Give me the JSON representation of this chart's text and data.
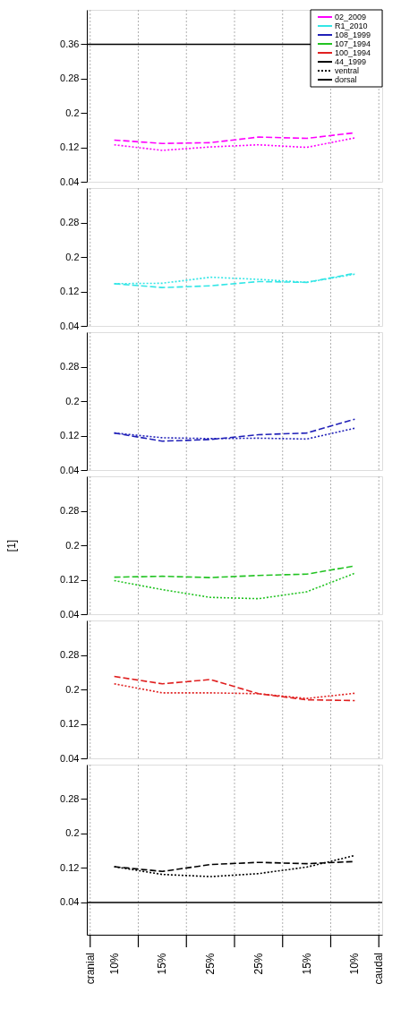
{
  "chart_data": [
    {
      "type": "line",
      "categories": [
        null,
        null,
        null,
        null,
        null,
        null
      ],
      "ylim": [
        0.04,
        0.44
      ],
      "yticks": [
        0.04,
        0.12,
        0.2,
        0.28,
        0.36
      ],
      "tick_labels": "y",
      "grid": "x",
      "legend": "top right",
      "ref_lines": [
        {
          "axis": "y",
          "value": 0.36,
          "color": "#000000",
          "line_style": "solid"
        }
      ],
      "series": [
        {
          "name": "02_2009",
          "color": "#ff00ff",
          "line_style": "dashed",
          "values": [
            0.137,
            0.129,
            0.131,
            0.144,
            0.141,
            0.154
          ]
        },
        {
          "color": "#ff00ff",
          "line_style": "dotted",
          "values": [
            0.126,
            0.113,
            0.121,
            0.126,
            0.12,
            0.142
          ]
        },
        {
          "name": "ventral",
          "color": "#000000",
          "line_style": "dotted",
          "values": [
            null,
            null,
            null,
            null,
            null,
            null
          ]
        },
        {
          "name": "dorsal",
          "color": "#000000",
          "line_style": "solid",
          "values": [
            null,
            null,
            null,
            null,
            null,
            null
          ]
        }
      ]
    },
    {
      "type": "line",
      "categories": [
        null,
        null,
        null,
        null,
        null,
        null
      ],
      "ylim": [
        0.04,
        0.36
      ],
      "yticks": [
        0.04,
        0.12,
        0.2,
        0.28
      ],
      "tick_labels": "y",
      "grid": "x",
      "series": [
        {
          "name": "R1_2010",
          "color": "#33e6e6",
          "line_style": "dashed",
          "values": [
            0.138,
            0.129,
            0.133,
            0.143,
            0.141,
            0.162
          ]
        },
        {
          "color": "#33e6e6",
          "line_style": "dotted",
          "values": [
            0.138,
            0.139,
            0.153,
            0.148,
            0.141,
            0.16
          ]
        }
      ]
    },
    {
      "type": "line",
      "categories": [
        null,
        null,
        null,
        null,
        null,
        null
      ],
      "ylim": [
        0.04,
        0.36
      ],
      "yticks": [
        0.04,
        0.12,
        0.2,
        0.28
      ],
      "tick_labels": "y",
      "grid": "x",
      "series": [
        {
          "name": "108_1999",
          "color": "#2020b8",
          "line_style": "dashed",
          "values": [
            0.126,
            0.107,
            0.111,
            0.122,
            0.126,
            0.158
          ]
        },
        {
          "color": "#2020b8",
          "line_style": "dotted",
          "values": [
            0.126,
            0.115,
            0.113,
            0.114,
            0.112,
            0.137
          ]
        }
      ]
    },
    {
      "type": "line",
      "categories": [
        null,
        null,
        null,
        null,
        null,
        null
      ],
      "ylim": [
        0.04,
        0.36
      ],
      "yticks": [
        0.04,
        0.12,
        0.2,
        0.28
      ],
      "tick_labels": "y",
      "grid": "x",
      "ylabel": "[1]",
      "series": [
        {
          "name": "107_1994",
          "color": "#22c322",
          "line_style": "dashed",
          "values": [
            0.126,
            0.128,
            0.125,
            0.13,
            0.133,
            0.152
          ]
        },
        {
          "color": "#22c322",
          "line_style": "dotted",
          "values": [
            0.118,
            0.097,
            0.079,
            0.076,
            0.092,
            0.135
          ]
        }
      ]
    },
    {
      "type": "line",
      "categories": [
        null,
        null,
        null,
        null,
        null,
        null
      ],
      "ylim": [
        0.04,
        0.36
      ],
      "yticks": [
        0.04,
        0.12,
        0.2,
        0.28
      ],
      "tick_labels": "y",
      "grid": "x",
      "series": [
        {
          "name": "100_1994",
          "color": "#e02020",
          "line_style": "dashed",
          "values": [
            0.23,
            0.213,
            0.223,
            0.19,
            0.176,
            0.174
          ]
        },
        {
          "color": "#e02020",
          "line_style": "dotted",
          "values": [
            0.213,
            0.192,
            0.192,
            0.19,
            0.179,
            0.191
          ]
        }
      ]
    },
    {
      "type": "line",
      "categories": [
        "10%",
        "15%",
        "25%",
        "25%",
        "15%",
        "10%"
      ],
      "ylim": [
        -0.035,
        0.36
      ],
      "yticks": [
        0.04,
        0.12,
        0.2,
        0.28
      ],
      "grid": "x",
      "ref_lines": [
        {
          "axis": "y",
          "value": 0.04,
          "color": "#000000",
          "line_style": "solid"
        }
      ],
      "annotations": [
        "cranial",
        "caudal"
      ],
      "series": [
        {
          "name": "44_1999",
          "color": "#000000",
          "line_style": "dashed",
          "values": [
            0.123,
            0.112,
            0.128,
            0.133,
            0.13,
            0.135
          ]
        },
        {
          "color": "#000000",
          "line_style": "dotted",
          "values": [
            0.123,
            0.105,
            0.1,
            0.107,
            0.122,
            0.149
          ]
        }
      ]
    }
  ]
}
